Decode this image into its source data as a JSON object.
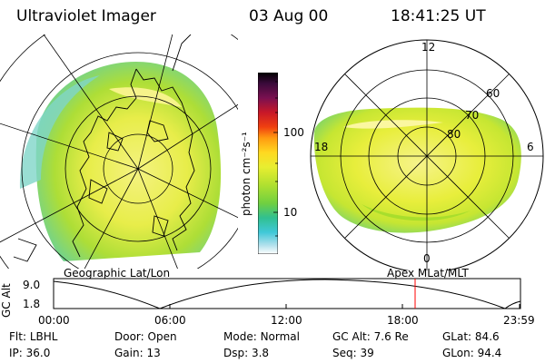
{
  "header": {
    "title": "Ultraviolet Imager",
    "date": "03 Aug 00",
    "time": "18:41:25 UT"
  },
  "colorbar": {
    "unit_label": "photon cm⁻²s⁻¹",
    "ticks": [
      "100",
      "10"
    ]
  },
  "left_panel": {
    "caption": "Geographic Lat/Lon"
  },
  "right_panel": {
    "caption": "Apex MLat/MLT",
    "mlt_labels": {
      "top": "12",
      "left": "18",
      "right": "6",
      "bottom": "0"
    },
    "lat_labels": [
      "60",
      "70",
      "80"
    ]
  },
  "altitude_plot": {
    "ylabel": "GC Alt",
    "yticks": [
      "9.0",
      "1.8"
    ],
    "xticks": [
      "00:00",
      "06:00",
      "12:00",
      "18:00",
      "23:59"
    ],
    "marker_time": "18:41"
  },
  "status": {
    "row1": [
      {
        "label": "Flt:",
        "value": "LBHL"
      },
      {
        "label": "Door:",
        "value": "Open"
      },
      {
        "label": "Mode:",
        "value": "Normal"
      },
      {
        "label": "GC Alt:",
        "value": "7.6 Re"
      },
      {
        "label": "GLat:",
        "value": "84.6"
      }
    ],
    "row2": [
      {
        "label": "IP:",
        "value": "36.0"
      },
      {
        "label": "Gain:",
        "value": "13"
      },
      {
        "label": "Dsp:",
        "value": "3.8"
      },
      {
        "label": "Seq:",
        "value": "39"
      },
      {
        "label": "GLon:",
        "value": "94.4"
      }
    ]
  },
  "colors": {
    "aurora_main": "#e8ee3a",
    "aurora_light": "#f2f56a",
    "aurora_green": "#9fdc2a",
    "aurora_edge": "#5fd0a0",
    "marker": "#ff0000"
  }
}
